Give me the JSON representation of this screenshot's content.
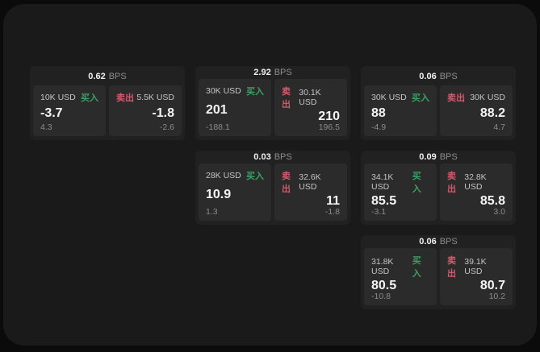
{
  "labels": {
    "bps_suffix": "BPS",
    "buy": "买入",
    "sell": "卖出"
  },
  "colors": {
    "buy": "#3ba063",
    "sell": "#d4596b",
    "page_background": "#1a1a1a",
    "card_background": "#212121",
    "panel_background": "#2b2b2b"
  },
  "cards": [
    {
      "bps": "0.62",
      "row": 1,
      "col": 1,
      "buy": {
        "amount": "10K USD",
        "value": "-3.7",
        "delta": "4.3"
      },
      "sell": {
        "amount": "5.5K USD",
        "value": "-1.8",
        "delta": "-2.6"
      }
    },
    {
      "bps": "2.92",
      "row": 1,
      "col": 2,
      "buy": {
        "amount": "30K USD",
        "value": "201",
        "delta": "-188.1"
      },
      "sell": {
        "amount": "30.1K USD",
        "value": "210",
        "delta": "196.5"
      }
    },
    {
      "bps": "0.06",
      "row": 1,
      "col": 3,
      "buy": {
        "amount": "30K USD",
        "value": "88",
        "delta": "-4.9"
      },
      "sell": {
        "amount": "30K USD",
        "value": "88.2",
        "delta": "4.7"
      }
    },
    {
      "bps": "0.03",
      "row": 2,
      "col": 2,
      "buy": {
        "amount": "28K USD",
        "value": "10.9",
        "delta": "1.3"
      },
      "sell": {
        "amount": "32.6K USD",
        "value": "11",
        "delta": "-1.8"
      }
    },
    {
      "bps": "0.09",
      "row": 2,
      "col": 3,
      "buy": {
        "amount": "34.1K USD",
        "value": "85.5",
        "delta": "-3.1"
      },
      "sell": {
        "amount": "32.8K USD",
        "value": "85.8",
        "delta": "3.0"
      }
    },
    {
      "bps": "0.06",
      "row": 3,
      "col": 3,
      "buy": {
        "amount": "31.8K USD",
        "value": "80.5",
        "delta": "-10.8"
      },
      "sell": {
        "amount": "39.1K USD",
        "value": "80.7",
        "delta": "10.2"
      }
    }
  ]
}
